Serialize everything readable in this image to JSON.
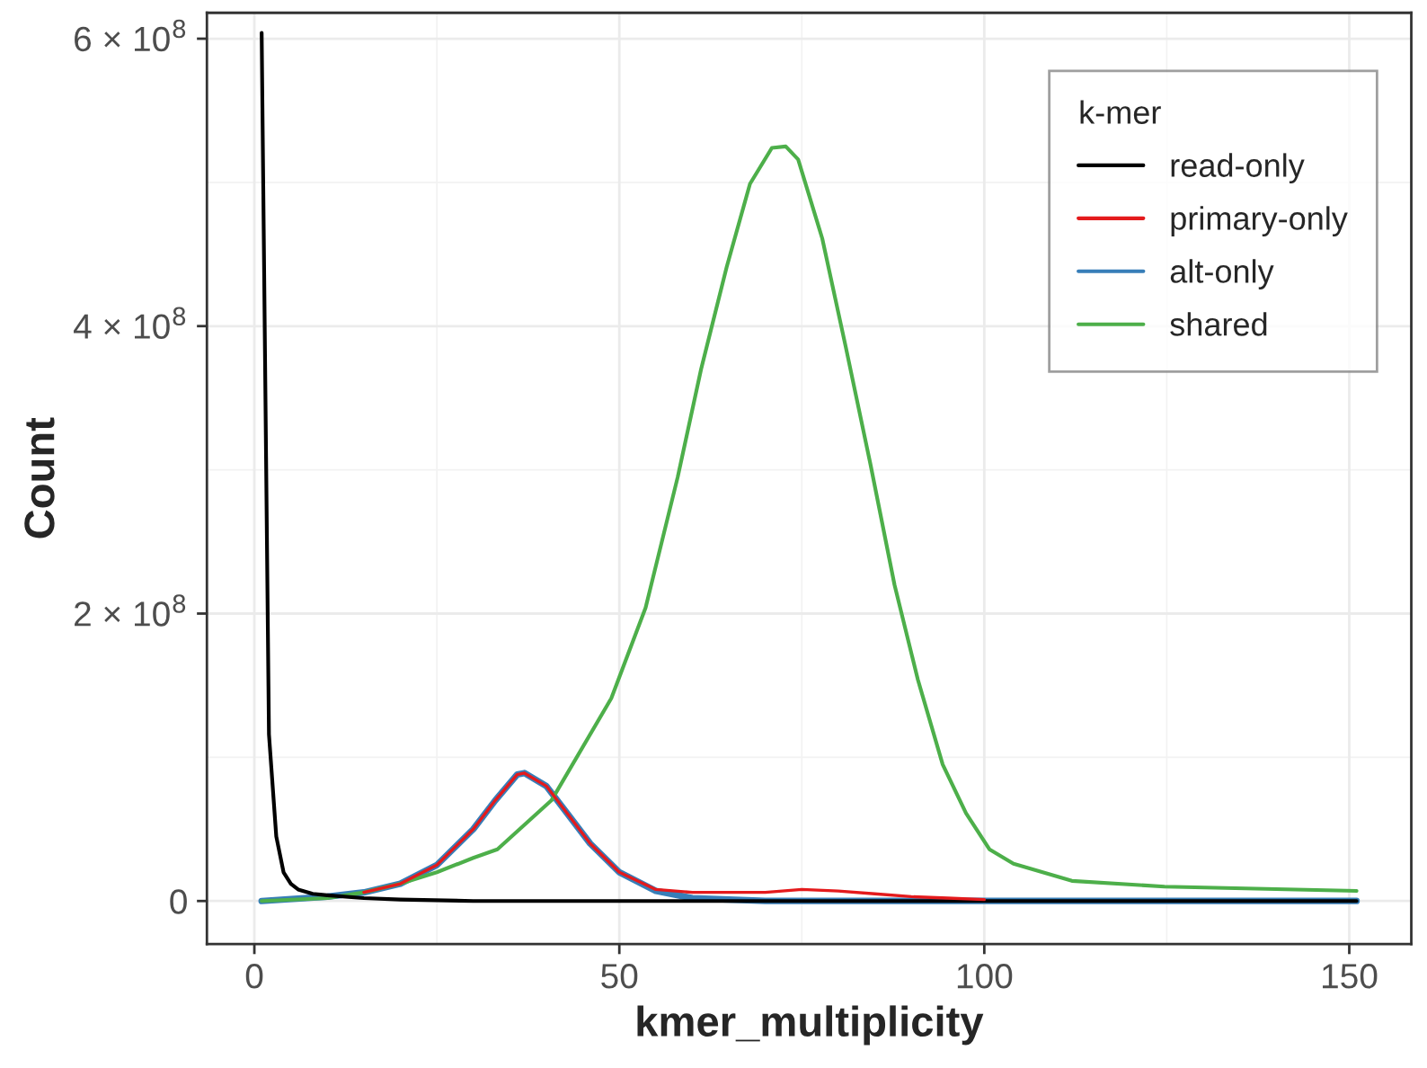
{
  "chart_data": {
    "type": "line",
    "xlabel": "kmer_multiplicity",
    "ylabel": "Count",
    "legend_title": "k-mer",
    "xlim": [
      -6.5,
      158.5
    ],
    "xticks": [
      0,
      50,
      100,
      150
    ],
    "ylim": [
      -30000000.0,
      618000000.0
    ],
    "yticks": [
      0,
      {
        "value": 200000000.0,
        "label": "2 × 10$^{8}$"
      },
      {
        "value": 400000000.0,
        "label": "4 × 10$^{8}$"
      },
      {
        "value": 600000000.0,
        "label": "6 × 10$^{8}$"
      }
    ],
    "grid": true,
    "legend": "top right",
    "line_style": "solid",
    "marker": "none",
    "series": [
      {
        "name": "read-only",
        "color": "#000000",
        "x": [
          1,
          2,
          3,
          4,
          5,
          6,
          8,
          10,
          15,
          20,
          30,
          50,
          100,
          151
        ],
        "values": [
          604000000.0,
          116000000.0,
          45000000.0,
          20000000.0,
          12000000.0,
          8000000.0,
          5000000.0,
          4000000.0,
          2000000.0,
          1000000.0,
          0,
          0,
          0,
          0
        ]
      },
      {
        "name": "primary-only",
        "color": "#e41a1c",
        "x": [
          15,
          20,
          25,
          30,
          33,
          36,
          37,
          40,
          43,
          46,
          50,
          55,
          60,
          65,
          70,
          75,
          80,
          85,
          90,
          95,
          100
        ],
        "values": [
          6000000.0,
          12000000.0,
          25000000.0,
          50000000.0,
          70000000.0,
          88000000.0,
          89000000.0,
          80000000.0,
          60000000.0,
          40000000.0,
          20000000.0,
          8000000.0,
          6000000.0,
          6000000.0,
          6000000.0,
          8000000.0,
          7000000.0,
          5000000.0,
          3000000.0,
          2000000.0,
          1000000.0
        ]
      },
      {
        "name": "alt-only",
        "color": "#377eb8",
        "x": [
          1,
          10,
          15,
          20,
          25,
          30,
          33,
          36,
          37,
          40,
          43,
          46,
          50,
          55,
          60,
          65,
          70,
          151
        ],
        "values": [
          0,
          3000000.0,
          6000000.0,
          12000000.0,
          25000000.0,
          50000000.0,
          70000000.0,
          88000000.0,
          89000000.0,
          80000000.0,
          60000000.0,
          40000000.0,
          20000000.0,
          7000000.0,
          2000000.0,
          1000000.0,
          0,
          0
        ]
      },
      {
        "name": "shared",
        "color": "#4daf4a",
        "x": [
          1,
          10,
          15,
          20,
          25,
          30,
          33.3,
          40.7,
          48.9,
          53.6,
          58,
          61.2,
          64.7,
          67.9,
          70.9,
          72.8,
          74.5,
          77.8,
          81,
          84.4,
          87.7,
          90.9,
          94.3,
          97.5,
          100.7,
          104,
          112,
          124.7,
          151
        ],
        "values": [
          0,
          2000000.0,
          6000000.0,
          12000000.0,
          20000000.0,
          30000000.0,
          36000000.0,
          70000000.0,
          141000000.0,
          204000000.0,
          295000000.0,
          370000000.0,
          441000000.0,
          499000000.0,
          524000000.0,
          525000000.0,
          516000000.0,
          461000000.0,
          386000000.0,
          304000000.0,
          220000000.0,
          154000000.0,
          95000000.0,
          61000000.0,
          36000000.0,
          26000000.0,
          14000000.0,
          10000000.0,
          7000000.0
        ]
      }
    ]
  }
}
